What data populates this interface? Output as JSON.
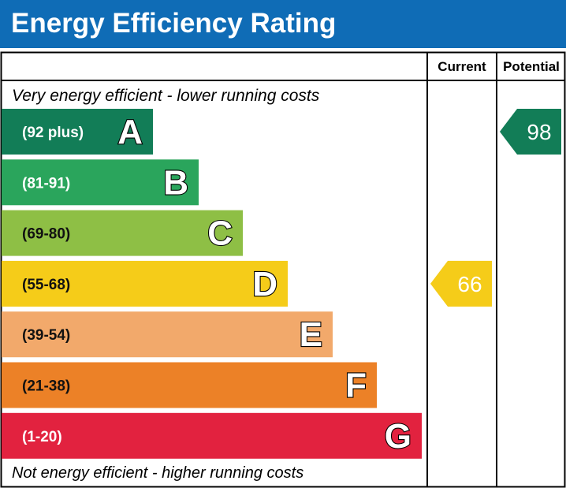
{
  "title": "Energy Efficiency Rating",
  "columns": {
    "current": "Current",
    "potential": "Potential"
  },
  "top_note": "Very energy efficient - lower running costs",
  "bottom_note": "Not energy efficient - higher running costs",
  "colors": {
    "header": "#0f6cb6",
    "A": "#127d57",
    "B": "#2aa55c",
    "C": "#8ebf45",
    "D": "#f5cc19",
    "E": "#f2a96b",
    "F": "#ec8127",
    "G": "#e2223f"
  },
  "chart_data": {
    "type": "bar",
    "title": "Energy Efficiency Rating",
    "categories": [
      "A",
      "B",
      "C",
      "D",
      "E",
      "F",
      "G"
    ],
    "ranges": [
      "(92 plus)",
      "(81-91)",
      "(69-80)",
      "(55-68)",
      "(39-54)",
      "(21-38)",
      "(1-20)"
    ],
    "series": [
      {
        "name": "Current",
        "value": 66,
        "band": "D"
      },
      {
        "name": "Potential",
        "value": 98,
        "band": "A"
      }
    ]
  }
}
